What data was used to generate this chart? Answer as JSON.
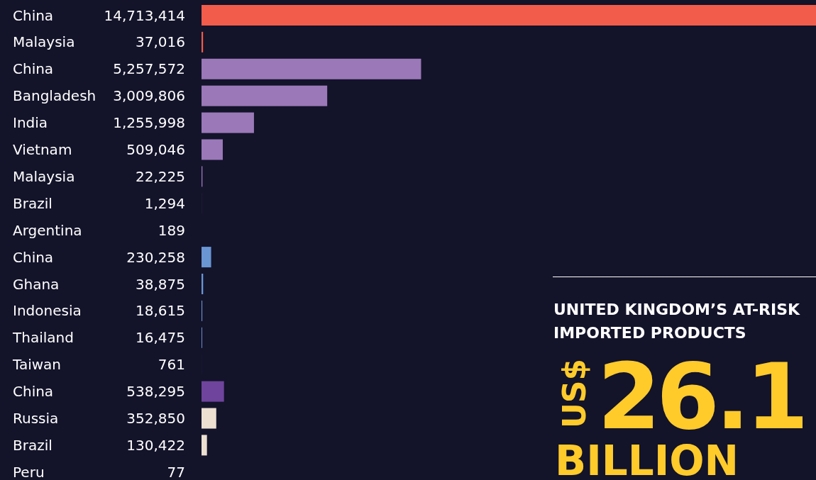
{
  "chart_data": {
    "type": "bar",
    "orientation": "horizontal",
    "categories": [
      "China",
      "Malaysia",
      "China",
      "Bangladesh",
      "India",
      "Vietnam",
      "Malaysia",
      "Brazil",
      "Argentina",
      "China",
      "Ghana",
      "Indonesia",
      "Thailand",
      "Taiwan",
      "China",
      "Russia",
      "Brazil",
      "Peru"
    ],
    "values": [
      14713414,
      37016,
      5257572,
      3009806,
      1255998,
      509046,
      22225,
      1294,
      189,
      230258,
      38875,
      18615,
      16475,
      761,
      538295,
      352850,
      130422,
      77
    ],
    "colors": [
      "#f25c4a",
      "#f25c4a",
      "#9b78b8",
      "#9b78b8",
      "#9b78b8",
      "#9b78b8",
      "#9b78b8",
      "#9b78b8",
      "#9b78b8",
      "#6a96d4",
      "#6a96d4",
      "#6a96d4",
      "#6a96d4",
      "#6a96d4",
      "#6e449c",
      "#ede0d0",
      "#ede0d0",
      "#ede0d0"
    ],
    "xlim": [
      0,
      14713414
    ],
    "value_labels": [
      "14,713,414",
      "37,016",
      "5,257,572",
      "3,009,806",
      "1,255,998",
      "509,046",
      "22,225",
      "1,294",
      "189",
      "230,258",
      "38,875",
      "18,615",
      "16,475",
      "761",
      "538,295",
      "352,850",
      "130,422",
      "77"
    ],
    "annotations": [
      "UNITED KINGDOM’S AT-RISK IMPORTED PRODUCTS",
      "US$",
      "26.1",
      "BILLION"
    ]
  }
}
